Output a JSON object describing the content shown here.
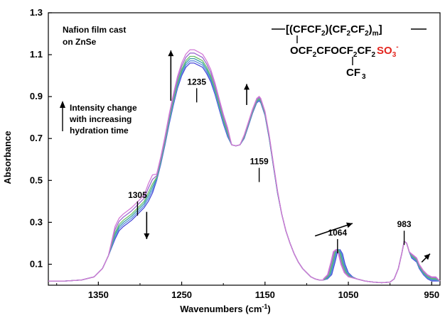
{
  "chart_data": {
    "type": "line",
    "xlabel": "Wavenumbers (cm",
    "xlabel_sup": "-1",
    "xlabel_close": ")",
    "ylabel": "Absorbance",
    "xlim": [
      1410,
      940
    ],
    "ylim": [
      0.0,
      1.3
    ],
    "x_ticks": [
      1350,
      1250,
      1150,
      1050,
      950
    ],
    "y_ticks": [
      0.1,
      0.3,
      0.5,
      0.7,
      0.9,
      1.1,
      1.3
    ],
    "x_tick_labels": [
      "1350",
      "1250",
      "1150",
      "1050",
      "950"
    ],
    "y_tick_labels": [
      "0.1",
      "0.3",
      "0.5",
      "0.7",
      "0.9",
      "1.1",
      "1.3"
    ],
    "grid": false,
    "x_reversed": true,
    "series_colors": [
      "#4a4ad8",
      "#5c8fe0",
      "#3aa0a8",
      "#6cc06a",
      "#9b6ad0",
      "#d27ad6"
    ],
    "base_x": [
      1410,
      1390,
      1370,
      1355,
      1345,
      1338,
      1330,
      1325,
      1320,
      1315,
      1310,
      1305,
      1300,
      1295,
      1290,
      1285,
      1280,
      1275,
      1270,
      1265,
      1260,
      1255,
      1250,
      1245,
      1240,
      1235,
      1230,
      1225,
      1220,
      1215,
      1210,
      1205,
      1200,
      1195,
      1190,
      1185,
      1180,
      1175,
      1170,
      1165,
      1160,
      1157,
      1155,
      1150,
      1145,
      1140,
      1135,
      1130,
      1125,
      1120,
      1115,
      1110,
      1105,
      1100,
      1095,
      1090,
      1085,
      1080,
      1075,
      1070,
      1066,
      1063,
      1060,
      1057,
      1054,
      1050,
      1045,
      1040,
      1030,
      1020,
      1010,
      1000,
      995,
      990,
      986,
      983,
      980,
      977,
      974,
      971,
      968,
      965,
      960,
      955,
      950,
      945,
      940
    ],
    "base_y": [
      0.02,
      0.02,
      0.025,
      0.04,
      0.08,
      0.14,
      0.22,
      0.26,
      0.28,
      0.295,
      0.31,
      0.33,
      0.35,
      0.37,
      0.4,
      0.44,
      0.5,
      0.58,
      0.67,
      0.77,
      0.86,
      0.94,
      1.0,
      1.04,
      1.06,
      1.06,
      1.05,
      1.04,
      1.01,
      0.97,
      0.91,
      0.84,
      0.77,
      0.71,
      0.67,
      0.665,
      0.67,
      0.7,
      0.76,
      0.82,
      0.87,
      0.88,
      0.87,
      0.81,
      0.7,
      0.57,
      0.44,
      0.34,
      0.26,
      0.2,
      0.15,
      0.11,
      0.08,
      0.06,
      0.04,
      0.03,
      0.025,
      0.025,
      0.03,
      0.05,
      0.11,
      0.16,
      0.17,
      0.15,
      0.1,
      0.06,
      0.04,
      0.03,
      0.02,
      0.015,
      0.012,
      0.015,
      0.03,
      0.08,
      0.15,
      0.21,
      0.2,
      0.16,
      0.13,
      0.12,
      0.11,
      0.08,
      0.05,
      0.03,
      0.02,
      0.02,
      0.02
    ],
    "series": [
      {
        "main_scale": 1.0,
        "shoulder_add": 0.0,
        "shift_1064": 0,
        "tail_add": 0.0
      },
      {
        "main_scale": 1.01,
        "shoulder_add": 0.01,
        "shift_1064": 1,
        "tail_add": 0.004
      },
      {
        "main_scale": 1.02,
        "shoulder_add": 0.02,
        "shift_1064": 2,
        "tail_add": 0.008
      },
      {
        "main_scale": 1.03,
        "shoulder_add": 0.03,
        "shift_1064": 3,
        "tail_add": 0.012
      },
      {
        "main_scale": 1.045,
        "shoulder_add": 0.045,
        "shift_1064": 4,
        "tail_add": 0.016
      },
      {
        "main_scale": 1.06,
        "shoulder_add": 0.06,
        "shift_1064": 5,
        "tail_add": 0.02
      }
    ],
    "peak_labels": [
      {
        "text": "1305",
        "x": 1303,
        "y": 0.4
      },
      {
        "text": "1235",
        "x": 1232,
        "y": 0.94
      },
      {
        "text": "1159",
        "x": 1157,
        "y": 0.56
      },
      {
        "text": "1064",
        "x": 1063,
        "y": 0.22
      },
      {
        "text": "983",
        "x": 983,
        "y": 0.26
      }
    ],
    "annotation_title": [
      "Nafion film cast",
      "on ZnSe"
    ],
    "annotation_legend": [
      "Intensity change",
      "with increasing",
      "hydration time"
    ]
  },
  "structure": {
    "line1": "[(CFCF",
    "line1b": ")(CF",
    "line1c": "CF",
    "line1d": ")",
    "line1e": "]",
    "sub2": "2",
    "sub_m": "m",
    "line2": "OCF",
    "line2b": "CFOCF",
    "line2c": "CF",
    "sulfonate": "SO",
    "sulfonate_sub": "3",
    "sulfonate_sup": "-",
    "line3": "CF",
    "line3_sub": "3"
  }
}
